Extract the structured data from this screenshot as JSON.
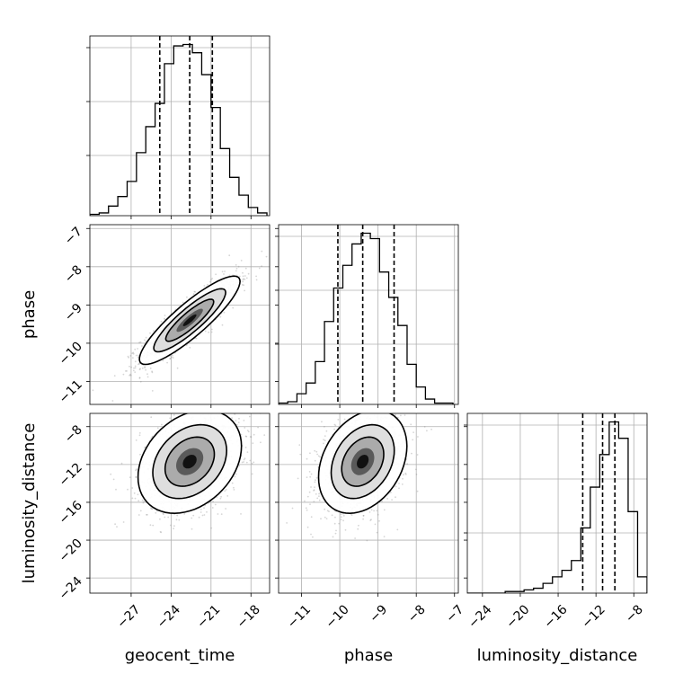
{
  "chart_data": {
    "type": "corner",
    "parameters": [
      "geocent_time",
      "phase",
      "luminosity_distance"
    ],
    "axes": {
      "geocent_time": {
        "label": "geocent_time",
        "lim": [
          -30.1,
          -16.6
        ],
        "ticks": [
          -27,
          -24,
          -21,
          -18
        ],
        "tick_labels": [
          "−27",
          "−24",
          "−21",
          "−18"
        ]
      },
      "phase": {
        "label": "phase",
        "lim": [
          -11.6,
          -6.9
        ],
        "ticks": [
          -11,
          -10,
          -9,
          -8,
          -7
        ],
        "tick_labels": [
          "−11",
          "−10",
          "−9",
          "−8",
          "−7"
        ]
      },
      "luminosity_distance": {
        "label": "luminosity_distance",
        "lim": [
          -25.6,
          -6.6
        ],
        "ticks": [
          -24,
          -20,
          -16,
          -12,
          -8
        ],
        "tick_labels": [
          "−24",
          "−20",
          "−16",
          "−12",
          "−8"
        ]
      }
    },
    "grid": true,
    "quantile_lines": {
      "geocent_time": [
        -24.85,
        -22.6,
        -20.9
      ],
      "phase": [
        -10.05,
        -9.4,
        -8.58
      ],
      "luminosity_distance": [
        -13.4,
        -11.3,
        -10.0
      ]
    },
    "histograms": {
      "geocent_time": {
        "edges": [
          -30.1,
          -29.4,
          -28.7,
          -28.0,
          -27.3,
          -26.6,
          -25.9,
          -25.2,
          -24.5,
          -23.8,
          -23.1,
          -22.4,
          -21.7,
          -21.0,
          -20.3,
          -19.6,
          -18.9,
          -18.2,
          -17.5,
          -16.8
        ],
        "counts": [
          1,
          2,
          7,
          14,
          25,
          46,
          65,
          82,
          111,
          124,
          125,
          119,
          103,
          79,
          49,
          28,
          15,
          6,
          2
        ]
      },
      "phase": {
        "edges": [
          -11.6,
          -11.36,
          -11.12,
          -10.88,
          -10.64,
          -10.4,
          -10.16,
          -9.92,
          -9.68,
          -9.44,
          -9.2,
          -8.96,
          -8.72,
          -8.48,
          -8.24,
          -8.0,
          -7.76,
          -7.52,
          -7.28,
          -7.04
        ],
        "counts": [
          1,
          2,
          8,
          16,
          32,
          62,
          87,
          104,
          120,
          128,
          124,
          99,
          80,
          59,
          30,
          13,
          4,
          1,
          1
        ]
      },
      "luminosity_distance": {
        "edges": [
          -25.6,
          -24.6,
          -23.6,
          -22.6,
          -21.6,
          -20.6,
          -19.6,
          -18.6,
          -17.6,
          -16.6,
          -15.6,
          -14.6,
          -13.6,
          -12.6,
          -11.6,
          -10.6,
          -9.6,
          -8.6,
          -7.6,
          -6.6
        ],
        "counts": [
          0,
          0,
          0,
          0,
          1,
          1,
          2,
          3,
          6,
          10,
          14,
          20,
          40,
          65,
          85,
          105,
          95,
          50,
          10
        ]
      }
    },
    "densities": [
      {
        "x": "geocent_time",
        "y": "phase",
        "mean": [
          -22.6,
          -9.4
        ],
        "sd": [
          1.8,
          0.55
        ],
        "corr": 0.88
      },
      {
        "x": "geocent_time",
        "y": "luminosity_distance",
        "mean": [
          -22.6,
          -11.7
        ],
        "sd": [
          1.85,
          2.6
        ],
        "corr": 0.3
      },
      {
        "x": "phase",
        "y": "luminosity_distance",
        "mean": [
          -9.4,
          -11.7
        ],
        "sd": [
          0.55,
          2.6
        ],
        "corr": 0.3
      }
    ]
  }
}
